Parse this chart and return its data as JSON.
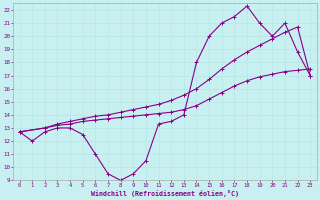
{
  "bg_color": "#c8f0f0",
  "grid_color": "#aadddd",
  "line_color": "#880088",
  "xlabel": "Windchill (Refroidissement éolien,°C)",
  "xlim": [
    -0.5,
    23.5
  ],
  "ylim": [
    9,
    22.5
  ],
  "xticks": [
    0,
    1,
    2,
    3,
    4,
    5,
    6,
    7,
    8,
    9,
    10,
    11,
    12,
    13,
    14,
    15,
    16,
    17,
    18,
    19,
    20,
    21,
    22,
    23
  ],
  "yticks": [
    9,
    10,
    11,
    12,
    13,
    14,
    15,
    16,
    17,
    18,
    19,
    20,
    21,
    22
  ],
  "line1_x": [
    0,
    1,
    2,
    3,
    4,
    5,
    6,
    7,
    8,
    9,
    10,
    11,
    12,
    13,
    14,
    15,
    16,
    17,
    18,
    19,
    20,
    21,
    22,
    23
  ],
  "line1_y": [
    12.7,
    12.0,
    12.7,
    13.0,
    13.0,
    12.5,
    11.0,
    9.5,
    9.0,
    9.5,
    10.5,
    13.3,
    13.5,
    14.0,
    18.0,
    20.0,
    21.0,
    21.5,
    22.3,
    21.0,
    20.0,
    21.0,
    18.8,
    17.0
  ],
  "line2_x": [
    0,
    2,
    3,
    4,
    5,
    6,
    7,
    8,
    9,
    10,
    11,
    12,
    13,
    14,
    15,
    16,
    17,
    18,
    19,
    20,
    21,
    22,
    23
  ],
  "line2_y": [
    12.7,
    13.0,
    13.2,
    13.3,
    13.5,
    13.6,
    13.7,
    13.8,
    13.9,
    14.0,
    14.1,
    14.2,
    14.4,
    14.7,
    15.2,
    15.7,
    16.2,
    16.6,
    16.9,
    17.1,
    17.3,
    17.4,
    17.5
  ],
  "line3_x": [
    0,
    2,
    3,
    4,
    5,
    6,
    7,
    8,
    9,
    10,
    11,
    12,
    13,
    14,
    15,
    16,
    17,
    18,
    19,
    20,
    21,
    22,
    23
  ],
  "line3_y": [
    12.7,
    13.0,
    13.3,
    13.5,
    13.7,
    13.9,
    14.0,
    14.2,
    14.4,
    14.6,
    14.8,
    15.1,
    15.5,
    16.0,
    16.7,
    17.5,
    18.2,
    18.8,
    19.3,
    19.8,
    20.3,
    20.7,
    17.0
  ]
}
